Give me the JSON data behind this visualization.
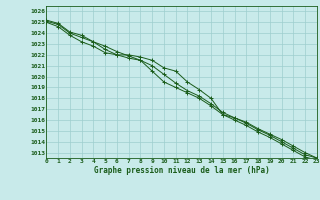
{
  "title": "Graphe pression niveau de la mer (hPa)",
  "xlim": [
    0,
    23
  ],
  "ylim": [
    1012.5,
    1026.5
  ],
  "yticks": [
    1013,
    1014,
    1015,
    1016,
    1017,
    1018,
    1019,
    1020,
    1021,
    1022,
    1023,
    1024,
    1025,
    1026
  ],
  "xticks": [
    0,
    1,
    2,
    3,
    4,
    5,
    6,
    7,
    8,
    9,
    10,
    11,
    12,
    13,
    14,
    15,
    16,
    17,
    18,
    19,
    20,
    21,
    22,
    23
  ],
  "bg_color": "#c8eaea",
  "grid_color": "#9ecece",
  "line_color": "#1a5c1a",
  "series": [
    [
      1025.2,
      1024.9,
      1024.1,
      1023.8,
      1023.2,
      1022.8,
      1022.3,
      1021.9,
      1021.5,
      1021.0,
      1020.2,
      1019.4,
      1018.7,
      1018.2,
      1017.5,
      1016.7,
      1016.2,
      1015.7,
      1015.1,
      1014.6,
      1014.0,
      1013.4,
      1012.8,
      1012.5
    ],
    [
      1025.1,
      1024.8,
      1024.0,
      1023.6,
      1023.2,
      1022.5,
      1022.0,
      1021.7,
      1021.5,
      1020.5,
      1019.5,
      1019.0,
      1018.5,
      1018.0,
      1017.3,
      1016.5,
      1016.0,
      1015.5,
      1014.9,
      1014.4,
      1013.8,
      1013.2,
      1012.6,
      1012.3
    ],
    [
      1025.0,
      1024.6,
      1023.8,
      1023.2,
      1022.8,
      1022.2,
      1022.0,
      1022.0,
      1021.8,
      1021.5,
      1020.8,
      1020.5,
      1019.5,
      1018.8,
      1018.0,
      1016.5,
      1016.2,
      1015.8,
      1015.2,
      1014.7,
      1014.2,
      1013.6,
      1013.0,
      1012.5
    ]
  ]
}
